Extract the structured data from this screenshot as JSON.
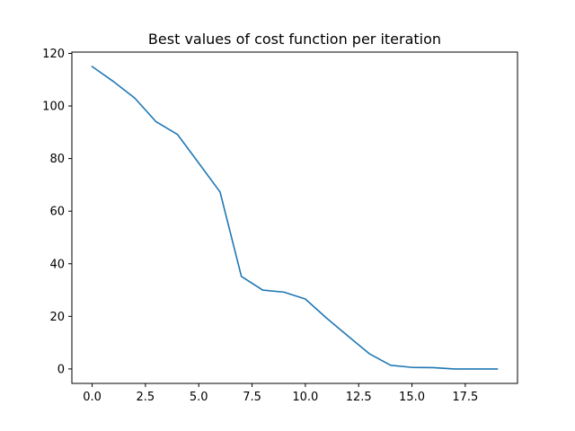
{
  "chart_data": {
    "type": "line",
    "title": "Best values of cost function per iteration",
    "xlabel": "",
    "ylabel": "",
    "xlim": [
      -0.95,
      19.95
    ],
    "ylim": [
      -5.5,
      120.5
    ],
    "grid": false,
    "x_ticks": [
      0.0,
      2.5,
      5.0,
      7.5,
      10.0,
      12.5,
      15.0,
      17.5
    ],
    "x_tick_labels": [
      "0.0",
      "2.5",
      "5.0",
      "7.5",
      "10.0",
      "12.5",
      "15.0",
      "17.5"
    ],
    "y_ticks": [
      0,
      20,
      40,
      60,
      80,
      100,
      120
    ],
    "y_tick_labels": [
      "0",
      "20",
      "40",
      "60",
      "80",
      "100",
      "120"
    ],
    "series": [
      {
        "color": "#1f77b4",
        "x": [
          0,
          1,
          2,
          3,
          4,
          5,
          6,
          7,
          8,
          9,
          10,
          11,
          12,
          13,
          14,
          15,
          16,
          17,
          18,
          19
        ],
        "y": [
          115,
          109.3,
          103,
          94,
          89.2,
          78.3,
          67.3,
          35.2,
          30,
          29.2,
          26.6,
          19.3,
          12.5,
          5.8,
          1.4,
          0.6,
          0.5,
          0,
          0,
          0
        ]
      }
    ]
  }
}
